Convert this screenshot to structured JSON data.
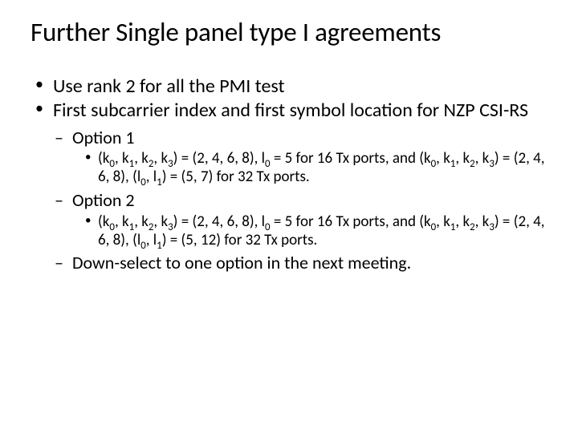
{
  "title": "Further Single panel type I agreements",
  "bullets": {
    "b1": "Use rank 2 for all the PMI test",
    "b2": "First subcarrier index and first symbol location for NZP CSI-RS",
    "opt1_label": "Option 1",
    "opt1_detail_a": "(k",
    "opt1_detail_b": ", k",
    "opt1_detail_c": ", k",
    "opt1_detail_d": ", k",
    "opt1_detail_e": ") = (2, 4, 6, 8), l",
    "opt1_detail_f": " = 5 for 16 Tx ports, and (k",
    "opt1_detail_g": ", k",
    "opt1_detail_h": ", k",
    "opt1_detail_i": ", k",
    "opt1_detail_j": ") = (2, 4, 6, 8), (l",
    "opt1_detail_k": ", l",
    "opt1_detail_l": ") = (5, 7) for 32 Tx ports.",
    "opt2_label": "Option 2",
    "opt2_detail_a": "(k",
    "opt2_detail_b": ", k",
    "opt2_detail_c": ", k",
    "opt2_detail_d": ", k",
    "opt2_detail_e": ") = (2, 4, 6, 8), l",
    "opt2_detail_f": " = 5 for 16 Tx ports, and (k",
    "opt2_detail_g": ", k",
    "opt2_detail_h": ", k",
    "opt2_detail_i": ", k",
    "opt2_detail_j": ") = (2, 4, 6, 8), (l",
    "opt2_detail_k": ", l",
    "opt2_detail_l": ") = (5, 12) for 32 Tx ports.",
    "downselect": "Down-select to one option in the next meeting."
  },
  "subs": {
    "s0": "0",
    "s1": "1",
    "s2": "2",
    "s3": "3"
  },
  "style": {
    "background_color": "#ffffff",
    "text_color": "#000000",
    "font_family": "Calibri",
    "title_fontsize": 33,
    "lvl1_fontsize": 24,
    "lvl2_fontsize": 22,
    "lvl3_fontsize": 19
  }
}
